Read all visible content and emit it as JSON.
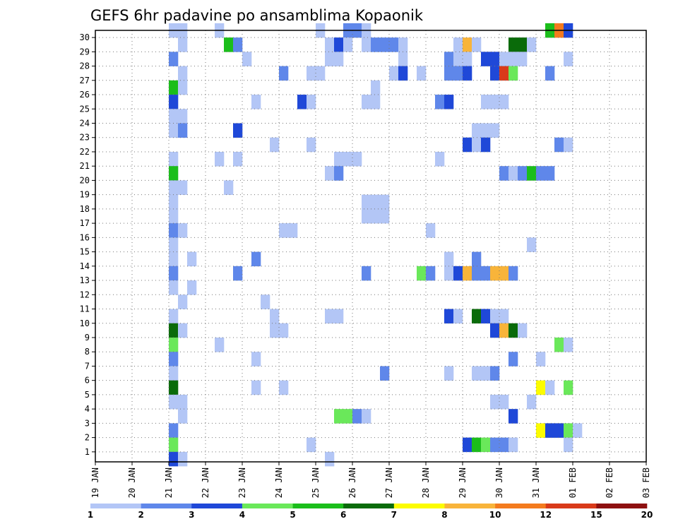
{
  "chart_data": {
    "type": "heatmap",
    "title": "GEFS 6hr padavine po ansamblima Kopaonik",
    "xlabel": "",
    "ylabel": "",
    "x_tick_labels": [
      "19 JAN",
      "20 JAN",
      "21 JAN",
      "22 JAN",
      "23 JAN",
      "24 JAN",
      "25 JAN",
      "26 JAN",
      "27 JAN",
      "28 JAN",
      "29 JAN",
      "30 JAN",
      "31 JAN",
      "01 FEB",
      "02 FEB",
      "03 FEB"
    ],
    "y_tick_labels": [
      "1",
      "2",
      "3",
      "4",
      "5",
      "6",
      "7",
      "8",
      "9",
      "10",
      "11",
      "12",
      "13",
      "14",
      "15",
      "16",
      "17",
      "18",
      "19",
      "20",
      "21",
      "22",
      "23",
      "24",
      "25",
      "26",
      "27",
      "28",
      "29",
      "30"
    ],
    "ylim": [
      0,
      30
    ],
    "time_step_hours": 6,
    "grid": true,
    "colorbar": {
      "labels": [
        "1",
        "2",
        "3",
        "4",
        "5",
        "6",
        "7",
        "8",
        "10",
        "12",
        "15",
        "20"
      ],
      "colors": [
        "#b3c6f6",
        "#5f87ea",
        "#1f48d8",
        "#6ae85a",
        "#1bbe1b",
        "#0a6b0a",
        "#fcfc00",
        "#f8b43a",
        "#f47b1e",
        "#d93a1a",
        "#8e1010"
      ]
    },
    "cells": [
      [
        30,
        8,
        0
      ],
      [
        30,
        9,
        0
      ],
      [
        30,
        13,
        0
      ],
      [
        30,
        24,
        0
      ],
      [
        30,
        27,
        1
      ],
      [
        30,
        28,
        1
      ],
      [
        30,
        29,
        0
      ],
      [
        30,
        49,
        4
      ],
      [
        30,
        50,
        8
      ],
      [
        30,
        51,
        2
      ],
      [
        29,
        9,
        0
      ],
      [
        29,
        14,
        4
      ],
      [
        29,
        15,
        1
      ],
      [
        29,
        25,
        0
      ],
      [
        29,
        26,
        2
      ],
      [
        29,
        27,
        0
      ],
      [
        29,
        29,
        0
      ],
      [
        29,
        30,
        1
      ],
      [
        29,
        31,
        1
      ],
      [
        29,
        32,
        1
      ],
      [
        29,
        33,
        0
      ],
      [
        29,
        39,
        0
      ],
      [
        29,
        40,
        7
      ],
      [
        29,
        41,
        0
      ],
      [
        29,
        45,
        5
      ],
      [
        29,
        46,
        5
      ],
      [
        29,
        47,
        0
      ],
      [
        28,
        8,
        1
      ],
      [
        28,
        16,
        0
      ],
      [
        28,
        25,
        0
      ],
      [
        28,
        26,
        0
      ],
      [
        28,
        33,
        0
      ],
      [
        28,
        38,
        1
      ],
      [
        28,
        39,
        0
      ],
      [
        28,
        40,
        0
      ],
      [
        28,
        42,
        2
      ],
      [
        28,
        43,
        2
      ],
      [
        28,
        44,
        0
      ],
      [
        28,
        45,
        0
      ],
      [
        28,
        46,
        0
      ],
      [
        28,
        51,
        0
      ],
      [
        27,
        9,
        0
      ],
      [
        27,
        20,
        1
      ],
      [
        27,
        23,
        0
      ],
      [
        27,
        24,
        0
      ],
      [
        27,
        32,
        0
      ],
      [
        27,
        33,
        2
      ],
      [
        27,
        35,
        0
      ],
      [
        27,
        38,
        1
      ],
      [
        27,
        39,
        1
      ],
      [
        27,
        40,
        2
      ],
      [
        27,
        43,
        2
      ],
      [
        27,
        44,
        9
      ],
      [
        27,
        45,
        3
      ],
      [
        27,
        49,
        1
      ],
      [
        26,
        8,
        4
      ],
      [
        26,
        9,
        0
      ],
      [
        26,
        30,
        0
      ],
      [
        25,
        8,
        2
      ],
      [
        25,
        17,
        0
      ],
      [
        25,
        22,
        2
      ],
      [
        25,
        23,
        0
      ],
      [
        25,
        29,
        0
      ],
      [
        25,
        30,
        0
      ],
      [
        25,
        37,
        1
      ],
      [
        25,
        38,
        2
      ],
      [
        25,
        42,
        0
      ],
      [
        25,
        43,
        0
      ],
      [
        25,
        44,
        0
      ],
      [
        24,
        8,
        0
      ],
      [
        24,
        9,
        0
      ],
      [
        23,
        8,
        0
      ],
      [
        23,
        9,
        1
      ],
      [
        23,
        15,
        2
      ],
      [
        23,
        41,
        0
      ],
      [
        23,
        42,
        0
      ],
      [
        23,
        43,
        0
      ],
      [
        22,
        19,
        0
      ],
      [
        22,
        23,
        0
      ],
      [
        22,
        40,
        2
      ],
      [
        22,
        41,
        0
      ],
      [
        22,
        42,
        2
      ],
      [
        22,
        50,
        1
      ],
      [
        22,
        51,
        0
      ],
      [
        21,
        8,
        0
      ],
      [
        21,
        13,
        0
      ],
      [
        21,
        15,
        0
      ],
      [
        21,
        26,
        0
      ],
      [
        21,
        27,
        0
      ],
      [
        21,
        28,
        0
      ],
      [
        21,
        37,
        0
      ],
      [
        20,
        8,
        4
      ],
      [
        20,
        25,
        0
      ],
      [
        20,
        26,
        1
      ],
      [
        20,
        44,
        1
      ],
      [
        20,
        45,
        0
      ],
      [
        20,
        46,
        1
      ],
      [
        20,
        47,
        4
      ],
      [
        20,
        48,
        1
      ],
      [
        20,
        49,
        1
      ],
      [
        19,
        8,
        0
      ],
      [
        19,
        9,
        0
      ],
      [
        19,
        14,
        0
      ],
      [
        18,
        8,
        0
      ],
      [
        18,
        29,
        0
      ],
      [
        18,
        30,
        0
      ],
      [
        18,
        31,
        0
      ],
      [
        17,
        8,
        0
      ],
      [
        17,
        29,
        0
      ],
      [
        17,
        30,
        0
      ],
      [
        17,
        31,
        0
      ],
      [
        16,
        8,
        1
      ],
      [
        16,
        9,
        0
      ],
      [
        16,
        20,
        0
      ],
      [
        16,
        21,
        0
      ],
      [
        16,
        36,
        0
      ],
      [
        15,
        8,
        0
      ],
      [
        15,
        47,
        0
      ],
      [
        14,
        8,
        0
      ],
      [
        14,
        10,
        0
      ],
      [
        14,
        17,
        1
      ],
      [
        14,
        38,
        0
      ],
      [
        14,
        41,
        1
      ],
      [
        13,
        8,
        1
      ],
      [
        13,
        15,
        1
      ],
      [
        13,
        29,
        1
      ],
      [
        13,
        35,
        3
      ],
      [
        13,
        36,
        1
      ],
      [
        13,
        38,
        0
      ],
      [
        13,
        39,
        2
      ],
      [
        13,
        40,
        7
      ],
      [
        13,
        41,
        1
      ],
      [
        13,
        42,
        1
      ],
      [
        13,
        43,
        7
      ],
      [
        13,
        44,
        7
      ],
      [
        13,
        45,
        1
      ],
      [
        12,
        8,
        0
      ],
      [
        12,
        10,
        0
      ],
      [
        11,
        9,
        0
      ],
      [
        11,
        18,
        0
      ],
      [
        10,
        8,
        0
      ],
      [
        10,
        19,
        0
      ],
      [
        10,
        25,
        0
      ],
      [
        10,
        26,
        0
      ],
      [
        10,
        38,
        2
      ],
      [
        10,
        39,
        0
      ],
      [
        10,
        41,
        5
      ],
      [
        10,
        42,
        2
      ],
      [
        10,
        43,
        0
      ],
      [
        10,
        44,
        0
      ],
      [
        9,
        8,
        5
      ],
      [
        9,
        9,
        0
      ],
      [
        9,
        19,
        0
      ],
      [
        9,
        20,
        0
      ],
      [
        9,
        43,
        2
      ],
      [
        9,
        44,
        7
      ],
      [
        9,
        45,
        5
      ],
      [
        9,
        46,
        0
      ],
      [
        8,
        8,
        3
      ],
      [
        8,
        13,
        0
      ],
      [
        8,
        50,
        3
      ],
      [
        8,
        51,
        0
      ],
      [
        7,
        8,
        1
      ],
      [
        7,
        17,
        0
      ],
      [
        7,
        45,
        1
      ],
      [
        7,
        48,
        0
      ],
      [
        6,
        8,
        0
      ],
      [
        6,
        31,
        1
      ],
      [
        6,
        38,
        0
      ],
      [
        6,
        41,
        0
      ],
      [
        6,
        42,
        0
      ],
      [
        6,
        43,
        1
      ],
      [
        5,
        8,
        5
      ],
      [
        5,
        17,
        0
      ],
      [
        5,
        20,
        0
      ],
      [
        5,
        48,
        6
      ],
      [
        5,
        49,
        0
      ],
      [
        5,
        51,
        3
      ],
      [
        4,
        8,
        0
      ],
      [
        4,
        9,
        0
      ],
      [
        4,
        43,
        0
      ],
      [
        4,
        44,
        0
      ],
      [
        4,
        47,
        0
      ],
      [
        3,
        9,
        0
      ],
      [
        3,
        26,
        3
      ],
      [
        3,
        27,
        3
      ],
      [
        3,
        28,
        1
      ],
      [
        3,
        29,
        0
      ],
      [
        3,
        45,
        2
      ],
      [
        2,
        8,
        1
      ],
      [
        2,
        48,
        6
      ],
      [
        2,
        49,
        2
      ],
      [
        2,
        50,
        2
      ],
      [
        2,
        51,
        3
      ],
      [
        2,
        52,
        0
      ],
      [
        1,
        8,
        3
      ],
      [
        1,
        23,
        0
      ],
      [
        1,
        40,
        2
      ],
      [
        1,
        41,
        4
      ],
      [
        1,
        42,
        3
      ],
      [
        1,
        43,
        1
      ],
      [
        1,
        44,
        1
      ],
      [
        1,
        45,
        0
      ],
      [
        1,
        51,
        0
      ],
      [
        0,
        8,
        2
      ],
      [
        0,
        9,
        0
      ],
      [
        0,
        25,
        0
      ]
    ]
  }
}
